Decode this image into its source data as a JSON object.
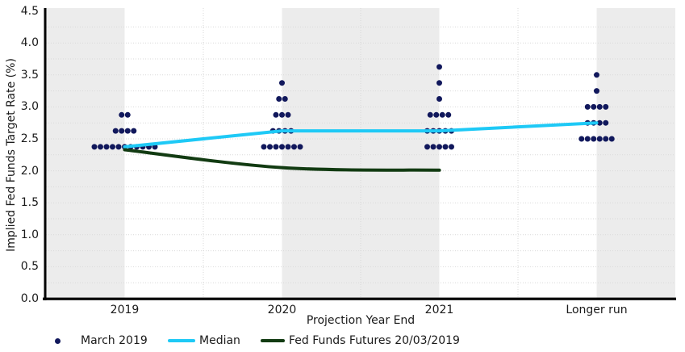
{
  "chart_data": {
    "type": "scatter",
    "title": "",
    "xlabel": "Projection Year End",
    "ylabel": "Implied Fed Funds Target Rate (%)",
    "categories": [
      "2019",
      "2020",
      "2021",
      "Longer run"
    ],
    "ylim": [
      0.0,
      4.5
    ],
    "y_tick_labels": [
      "0.0",
      "0.5",
      "1.0",
      "1.5",
      "2.0",
      "2.5",
      "3.0",
      "3.5",
      "4.0",
      "4.5"
    ],
    "y_major_step": 0.5,
    "y_minor_grid_step": 0.25,
    "grid_style": "dotted",
    "alternating_bands": true,
    "legend_position": "bottom",
    "colors": {
      "dots": "#11185c",
      "median": "#1ec9f6",
      "futures": "#123b12",
      "band": "#ececec",
      "grid": "#d9d9d9",
      "axis": "#000000",
      "text": "#1a1a1a"
    },
    "series": [
      {
        "name": "March 2019",
        "type": "dots",
        "color_key": "dots",
        "groups": [
          {
            "category": "2019",
            "dots": [
              {
                "rate": 2.375,
                "count": 11
              },
              {
                "rate": 2.625,
                "count": 4
              },
              {
                "rate": 2.875,
                "count": 2
              }
            ]
          },
          {
            "category": "2020",
            "dots": [
              {
                "rate": 2.375,
                "count": 7
              },
              {
                "rate": 2.625,
                "count": 4
              },
              {
                "rate": 2.875,
                "count": 3
              },
              {
                "rate": 3.125,
                "count": 2
              },
              {
                "rate": 3.375,
                "count": 1
              }
            ]
          },
          {
            "category": "2021",
            "dots": [
              {
                "rate": 2.375,
                "count": 5
              },
              {
                "rate": 2.625,
                "count": 5
              },
              {
                "rate": 2.875,
                "count": 4
              },
              {
                "rate": 3.125,
                "count": 1
              },
              {
                "rate": 3.375,
                "count": 1
              },
              {
                "rate": 3.625,
                "count": 1
              }
            ]
          },
          {
            "category": "Longer run",
            "dots": [
              {
                "rate": 2.5,
                "count": 6
              },
              {
                "rate": 2.75,
                "count": 4
              },
              {
                "rate": 3.0,
                "count": 4
              },
              {
                "rate": 3.25,
                "count": 1
              },
              {
                "rate": 3.5,
                "count": 1
              }
            ]
          }
        ]
      },
      {
        "name": "Median",
        "type": "line",
        "smooth": false,
        "color_key": "median",
        "points": [
          {
            "category": "2019",
            "value": 2.375
          },
          {
            "category": "2020",
            "value": 2.625
          },
          {
            "category": "2021",
            "value": 2.625
          },
          {
            "category": "Longer run",
            "value": 2.75
          }
        ]
      },
      {
        "name": "Fed Funds Futures 20/03/2019",
        "type": "line",
        "smooth": true,
        "color_key": "futures",
        "points": [
          {
            "category": "2019",
            "value": 2.33
          },
          {
            "category": "2020",
            "value": 2.05
          },
          {
            "category": "2021",
            "value": 2.01
          }
        ]
      }
    ],
    "legend": [
      {
        "label": "March 2019",
        "marker": "dot",
        "color_key": "dots"
      },
      {
        "label": "Median",
        "marker": "line",
        "color_key": "median"
      },
      {
        "label": "Fed Funds Futures 20/03/2019",
        "marker": "line",
        "color_key": "futures"
      }
    ]
  }
}
